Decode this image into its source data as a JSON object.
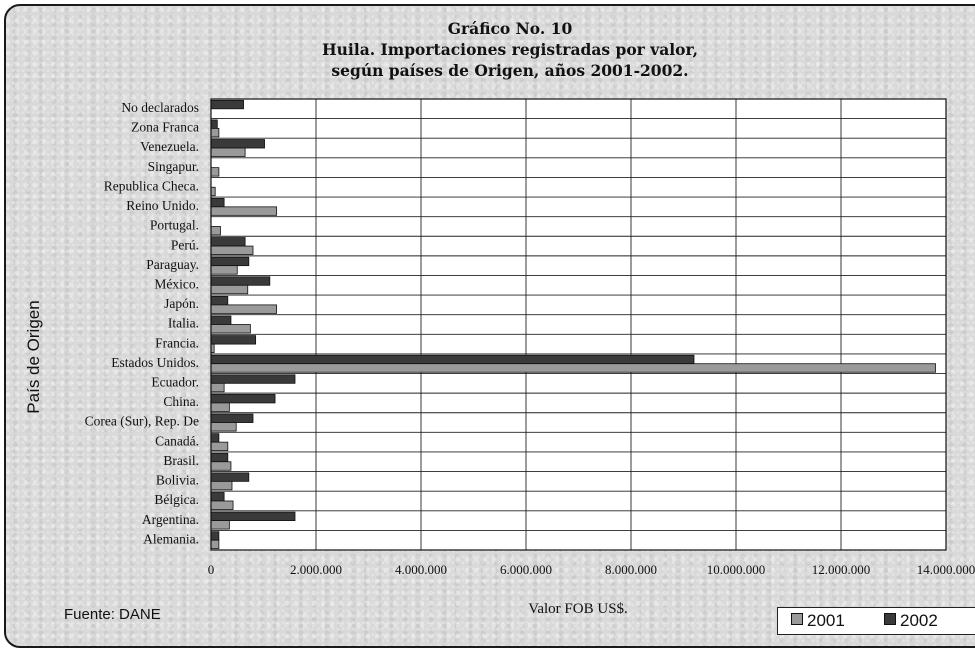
{
  "chart_data": {
    "type": "bar",
    "orientation": "horizontal",
    "title_lines": [
      "Gráfico No. 10",
      "Huila.  Importaciones registradas por valor,",
      "según países de Origen, años 2001-2002."
    ],
    "xlabel": "Valor FOB US$.",
    "ylabel": "País de Origen",
    "xlim": [
      0,
      14000000
    ],
    "x_ticks": [
      0,
      2000000,
      4000000,
      6000000,
      8000000,
      10000000,
      12000000,
      14000000
    ],
    "x_tick_labels": [
      "0",
      "2.000.000",
      "4.000.000",
      "6.000.000",
      "8.000.000",
      "10.000.000",
      "12.000.000",
      "14.000.000"
    ],
    "grid": "vertical",
    "legend_placement": "bottom-right",
    "categories": [
      "No declarados",
      "Zona Franca",
      "Venezuela.",
      "Singapur.",
      "Republica Checa.",
      "Reino Unido.",
      "Portugal.",
      "Perú.",
      "Paraguay.",
      "México.",
      "Japón.",
      "Italia.",
      "Francia.",
      "Estados Unidos.",
      "Ecuador.",
      "China.",
      "Corea (Sur), Rep. De",
      "Canadá.",
      "Brasil.",
      "Bolivia.",
      "Bélgica.",
      "Argentina.",
      "Alemania."
    ],
    "series": [
      {
        "name": "2001",
        "color": "#9a9a9a",
        "values": [
          0,
          150000,
          650000,
          150000,
          80000,
          1250000,
          180000,
          800000,
          500000,
          700000,
          1250000,
          750000,
          60000,
          13800000,
          250000,
          350000,
          480000,
          320000,
          380000,
          400000,
          420000,
          350000,
          150000
        ]
      },
      {
        "name": "2002",
        "color": "#3a3a3a",
        "values": [
          620000,
          120000,
          1020000,
          0,
          0,
          250000,
          0,
          650000,
          720000,
          1120000,
          320000,
          380000,
          850000,
          9200000,
          1600000,
          1220000,
          800000,
          150000,
          320000,
          720000,
          250000,
          1600000,
          150000
        ]
      }
    ]
  },
  "source_note": "Fuente:  DANE"
}
